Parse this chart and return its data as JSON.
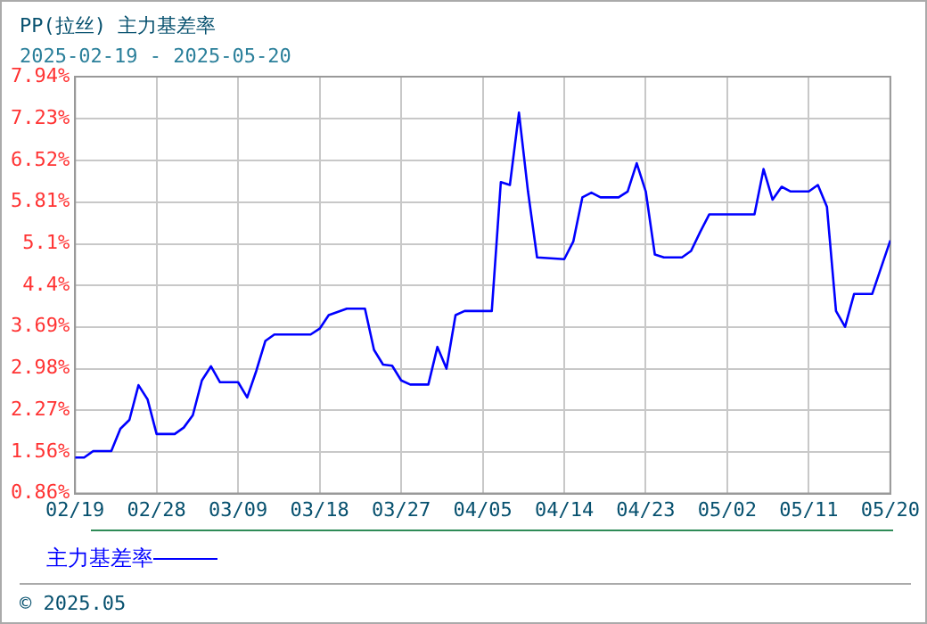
{
  "chart_data": {
    "type": "line",
    "title": "PP(拉丝)  主力基差率",
    "subtitle": "2025-02-19 - 2025-05-20",
    "x": [
      "2025-02-19",
      "2025-02-20",
      "2025-02-21",
      "2025-02-23",
      "2025-02-24",
      "2025-02-25",
      "2025-02-26",
      "2025-02-27",
      "2025-02-28",
      "2025-03-02",
      "2025-03-03",
      "2025-03-04",
      "2025-03-05",
      "2025-03-06",
      "2025-03-07",
      "2025-03-09",
      "2025-03-10",
      "2025-03-11",
      "2025-03-12",
      "2025-03-13",
      "2025-03-17",
      "2025-03-18",
      "2025-03-19",
      "2025-03-21",
      "2025-03-23",
      "2025-03-24",
      "2025-03-25",
      "2025-03-26",
      "2025-03-27",
      "2025-03-28",
      "2025-03-30",
      "2025-03-31",
      "2025-04-01",
      "2025-04-02",
      "2025-04-03",
      "2025-04-06",
      "2025-04-07",
      "2025-04-08",
      "2025-04-09",
      "2025-04-10",
      "2025-04-11",
      "2025-04-14",
      "2025-04-15",
      "2025-04-16",
      "2025-04-17",
      "2025-04-18",
      "2025-04-20",
      "2025-04-21",
      "2025-04-22",
      "2025-04-23",
      "2025-04-24",
      "2025-04-25",
      "2025-04-27",
      "2025-04-28",
      "2025-04-29",
      "2025-04-30",
      "2025-05-05",
      "2025-05-06",
      "2025-05-07",
      "2025-05-08",
      "2025-05-09",
      "2025-05-11",
      "2025-05-12",
      "2025-05-13",
      "2025-05-14",
      "2025-05-15",
      "2025-05-16",
      "2025-05-18",
      "2025-05-20"
    ],
    "series": [
      {
        "name": "主力基差率",
        "color": "#0000ff",
        "values": [
          1.47,
          1.47,
          1.58,
          1.58,
          1.96,
          2.11,
          2.7,
          2.46,
          1.87,
          1.87,
          1.98,
          2.19,
          2.78,
          3.02,
          2.75,
          2.75,
          2.49,
          2.94,
          3.45,
          3.56,
          3.56,
          3.66,
          3.89,
          4.0,
          4.0,
          3.3,
          3.05,
          3.03,
          2.78,
          2.71,
          2.71,
          3.35,
          2.98,
          3.89,
          3.96,
          3.96,
          6.15,
          6.1,
          7.33,
          5.99,
          4.87,
          4.84,
          5.14,
          5.89,
          5.97,
          5.89,
          5.89,
          5.99,
          6.47,
          5.99,
          4.92,
          4.87,
          4.87,
          4.98,
          5.3,
          5.6,
          5.6,
          6.37,
          5.85,
          6.07,
          5.99,
          5.99,
          6.1,
          5.73,
          3.96,
          3.69,
          4.25,
          4.25,
          5.16
        ]
      }
    ],
    "xlim": [
      "2025-02-19",
      "2025-05-20"
    ],
    "xticks": [
      {
        "value": "2025-02-19",
        "label": "02/19"
      },
      {
        "value": "2025-02-28",
        "label": "02/28"
      },
      {
        "value": "2025-03-09",
        "label": "03/09"
      },
      {
        "value": "2025-03-18",
        "label": "03/18"
      },
      {
        "value": "2025-03-27",
        "label": "03/27"
      },
      {
        "value": "2025-04-05",
        "label": "04/05"
      },
      {
        "value": "2025-04-14",
        "label": "04/14"
      },
      {
        "value": "2025-04-23",
        "label": "04/23"
      },
      {
        "value": "2025-05-02",
        "label": "05/02"
      },
      {
        "value": "2025-05-11",
        "label": "05/11"
      },
      {
        "value": "2025-05-20",
        "label": "05/20"
      }
    ],
    "ylim": [
      0.86,
      7.94
    ],
    "yticks": [
      {
        "value": 0.86,
        "label": "0.86%"
      },
      {
        "value": 1.56,
        "label": "1.56%"
      },
      {
        "value": 2.27,
        "label": "2.27%"
      },
      {
        "value": 2.98,
        "label": "2.98%"
      },
      {
        "value": 3.69,
        "label": "3.69%"
      },
      {
        "value": 4.4,
        "label": "4.4%"
      },
      {
        "value": 5.1,
        "label": "5.1%"
      },
      {
        "value": 5.81,
        "label": "5.81%"
      },
      {
        "value": 6.52,
        "label": "6.52%"
      },
      {
        "value": 7.23,
        "label": "7.23%"
      },
      {
        "value": 7.94,
        "label": "7.94%"
      }
    ],
    "grid": true,
    "legend": "bottom",
    "line_style": "solid",
    "annotations": [
      "© 2025.05"
    ]
  }
}
